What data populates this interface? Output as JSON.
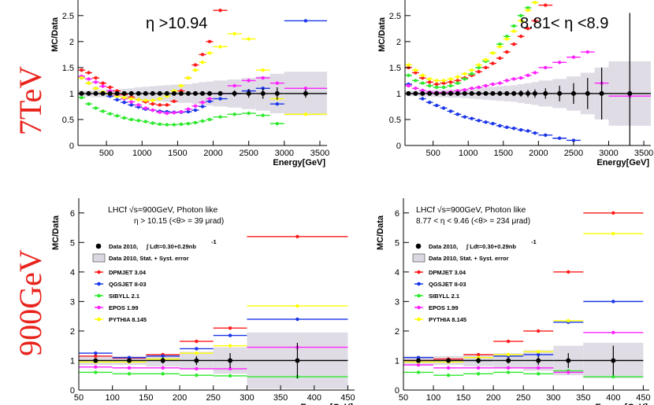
{
  "row_labels": [
    "7TeV",
    "900GeV"
  ],
  "colors": {
    "Data 2010": "#000000",
    "DPMJET 3.04": "#ff1a1a",
    "QGSJET II-03": "#1a35e8",
    "SIBYLL 2.1": "#2fe82f",
    "EPOS 1.99": "#ff22ff",
    "PYTHIA 8.145": "#ffff00",
    "band": "#dcd8e2"
  },
  "chart_data": [
    {
      "id": "p7a",
      "type": "scatter",
      "title": "η >10.94",
      "xlabel": "Energy[GeV]",
      "ylabel": "MC/Data",
      "xlim": [
        100,
        3600
      ],
      "ylim": [
        0,
        2.8
      ],
      "xticks": [
        500,
        1000,
        1500,
        2000,
        2500,
        3000,
        3500
      ],
      "yticks": [
        0,
        0.5,
        1,
        1.5,
        2,
        2.5
      ],
      "ytick_labels": [
        "0",
        "0.5",
        "1",
        "1.5",
        "2",
        "2.5"
      ],
      "bins": [
        [
          100,
          200
        ],
        [
          200,
          300
        ],
        [
          300,
          400
        ],
        [
          400,
          500
        ],
        [
          500,
          600
        ],
        [
          600,
          700
        ],
        [
          700,
          800
        ],
        [
          800,
          900
        ],
        [
          900,
          1000
        ],
        [
          1000,
          1100
        ],
        [
          1100,
          1200
        ],
        [
          1200,
          1300
        ],
        [
          1300,
          1400
        ],
        [
          1400,
          1500
        ],
        [
          1500,
          1600
        ],
        [
          1600,
          1700
        ],
        [
          1700,
          1800
        ],
        [
          1800,
          1900
        ],
        [
          1900,
          2000
        ],
        [
          2000,
          2200
        ],
        [
          2200,
          2400
        ],
        [
          2400,
          2600
        ],
        [
          2600,
          2800
        ],
        [
          2800,
          3000
        ],
        [
          3000,
          3600
        ]
      ],
      "band": [
        0.06,
        0.06,
        0.07,
        0.07,
        0.08,
        0.08,
        0.09,
        0.1,
        0.12,
        0.13,
        0.14,
        0.15,
        0.16,
        0.17,
        0.18,
        0.18,
        0.2,
        0.22,
        0.23,
        0.25,
        0.27,
        0.3,
        0.33,
        0.38,
        0.42
      ],
      "series": [
        {
          "name": "Data 2010",
          "values": [
            1,
            1,
            1,
            1,
            1,
            1,
            1,
            1,
            1,
            1,
            1,
            1,
            1,
            1,
            1,
            1,
            1,
            1,
            1,
            1,
            1,
            1,
            1,
            1,
            1
          ],
          "errors": [
            0.01,
            0.01,
            0.01,
            0.01,
            0.01,
            0.01,
            0.01,
            0.01,
            0.01,
            0.01,
            0.01,
            0.02,
            0.02,
            0.02,
            0.02,
            0.02,
            0.03,
            0.03,
            0.03,
            0.04,
            0.06,
            0.08,
            0.1,
            0.12,
            0.08
          ]
        },
        {
          "name": "DPMJET 3.04",
          "values": [
            1.45,
            1.4,
            1.3,
            1.2,
            1.12,
            1.05,
            0.98,
            0.93,
            0.88,
            0.84,
            0.8,
            0.78,
            0.78,
            0.85,
            1.05,
            1.3,
            1.55,
            1.75,
            2.0,
            2.6
          ]
        },
        {
          "name": "QGSJET II-03",
          "values": [
            1.3,
            1.2,
            1.1,
            1.0,
            0.95,
            0.88,
            0.83,
            0.78,
            0.74,
            0.7,
            0.68,
            0.66,
            0.65,
            0.64,
            0.64,
            0.65,
            0.68,
            0.75,
            0.85,
            0.9,
            1.0,
            1.05,
            1.1,
            0.8,
            2.4
          ]
        },
        {
          "name": "SIBYLL 2.1",
          "values": [
            0.92,
            0.8,
            0.72,
            0.66,
            0.61,
            0.57,
            0.53,
            0.5,
            0.48,
            0.46,
            0.43,
            0.41,
            0.4,
            0.4,
            0.41,
            0.42,
            0.44,
            0.47,
            0.5,
            0.55,
            0.6,
            0.62,
            0.58,
            0.42
          ]
        },
        {
          "name": "EPOS 1.99",
          "values": [
            1.33,
            1.28,
            1.22,
            1.14,
            1.05,
            0.97,
            0.9,
            0.84,
            0.78,
            0.72,
            0.68,
            0.64,
            0.62,
            0.63,
            0.65,
            0.7,
            0.76,
            0.83,
            0.9,
            1.0,
            1.15,
            1.25,
            1.3,
            1.2,
            1.1
          ]
        },
        {
          "name": "PYTHIA 8.145",
          "values": [
            1.3,
            1.2,
            1.1,
            1.03,
            0.99,
            0.95,
            0.92,
            0.9,
            0.88,
            0.87,
            0.87,
            0.9,
            0.95,
            1.05,
            1.15,
            1.3,
            1.45,
            1.6,
            1.78,
            1.9,
            2.15,
            2.05,
            1.45,
            0.9,
            0.6
          ]
        }
      ]
    },
    {
      "id": "p7b",
      "type": "scatter",
      "title": "8.81< η <8.9",
      "xlabel": "Energy[GeV]",
      "ylabel": "MC/Data",
      "xlim": [
        100,
        3600
      ],
      "ylim": [
        0,
        2.8
      ],
      "xticks": [
        500,
        1000,
        1500,
        2000,
        2500,
        3000,
        3500
      ],
      "yticks": [
        0,
        0.5,
        1,
        1.5,
        2,
        2.5
      ],
      "ytick_labels": [
        "0",
        "0.5",
        "1",
        "1.5",
        "2",
        "2.5"
      ],
      "bins": [
        [
          100,
          200
        ],
        [
          200,
          300
        ],
        [
          300,
          400
        ],
        [
          400,
          500
        ],
        [
          500,
          600
        ],
        [
          600,
          700
        ],
        [
          700,
          800
        ],
        [
          800,
          900
        ],
        [
          900,
          1000
        ],
        [
          1000,
          1100
        ],
        [
          1100,
          1200
        ],
        [
          1200,
          1300
        ],
        [
          1300,
          1400
        ],
        [
          1400,
          1500
        ],
        [
          1500,
          1600
        ],
        [
          1600,
          1700
        ],
        [
          1700,
          1800
        ],
        [
          1800,
          1900
        ],
        [
          1900,
          2000
        ],
        [
          2000,
          2200
        ],
        [
          2200,
          2400
        ],
        [
          2400,
          2600
        ],
        [
          2600,
          2800
        ],
        [
          2800,
          3000
        ],
        [
          3000,
          3600
        ]
      ],
      "band": [
        0.05,
        0.05,
        0.06,
        0.06,
        0.07,
        0.07,
        0.08,
        0.08,
        0.09,
        0.1,
        0.11,
        0.12,
        0.13,
        0.14,
        0.15,
        0.16,
        0.18,
        0.2,
        0.22,
        0.25,
        0.28,
        0.33,
        0.4,
        0.5,
        0.62
      ],
      "series": [
        {
          "name": "Data 2010",
          "values": [
            1,
            1,
            1,
            1,
            1,
            1,
            1,
            1,
            1,
            1,
            1,
            1,
            1,
            1,
            1,
            1,
            1,
            1,
            1,
            1,
            1,
            1,
            1,
            1,
            1
          ],
          "errors": [
            0.01,
            0.01,
            0.01,
            0.01,
            0.01,
            0.01,
            0.01,
            0.02,
            0.02,
            0.02,
            0.02,
            0.03,
            0.03,
            0.03,
            0.04,
            0.05,
            0.06,
            0.07,
            0.08,
            0.1,
            0.15,
            0.2,
            0.3,
            0.5,
            1.55
          ]
        },
        {
          "name": "DPMJET 3.04",
          "values": [
            1.5,
            1.4,
            1.3,
            1.22,
            1.18,
            1.2,
            1.22,
            1.25,
            1.3,
            1.35,
            1.42,
            1.5,
            1.58,
            1.68,
            1.8,
            1.95,
            2.1,
            2.25,
            2.4,
            2.7
          ]
        },
        {
          "name": "QGSJET II-03",
          "values": [
            1.18,
            1.0,
            0.9,
            0.83,
            0.77,
            0.72,
            0.66,
            0.6,
            0.55,
            0.52,
            0.48,
            0.45,
            0.42,
            0.38,
            0.35,
            0.33,
            0.3,
            0.28,
            0.24,
            0.2,
            0.14,
            0.1
          ]
        },
        {
          "name": "SIBYLL 2.1",
          "values": [
            1.35,
            1.25,
            1.2,
            1.15,
            1.12,
            1.12,
            1.15,
            1.2,
            1.28,
            1.38,
            1.5,
            1.62,
            1.78,
            1.95,
            2.1,
            2.3,
            2.5,
            2.65,
            2.75
          ]
        },
        {
          "name": "EPOS 1.99",
          "values": [
            1.15,
            1.1,
            1.06,
            1.03,
            1.02,
            1.02,
            1.03,
            1.05,
            1.07,
            1.1,
            1.12,
            1.15,
            1.18,
            1.2,
            1.25,
            1.28,
            1.3,
            1.35,
            1.4,
            1.5,
            1.6,
            1.7,
            1.8,
            1.2,
            0.95
          ]
        },
        {
          "name": "PYTHIA 8.145",
          "values": [
            1.55,
            1.45,
            1.35,
            1.28,
            1.25,
            1.25,
            1.28,
            1.32,
            1.38,
            1.45,
            1.55,
            1.65,
            1.78,
            1.9,
            2.05,
            2.2,
            2.4,
            2.6,
            2.75,
            2.85
          ]
        }
      ]
    },
    {
      "id": "p9a",
      "type": "scatter",
      "title": "LHCf √s=900GeV, Photon like",
      "subtitle": "η > 10.15 (<θ> = 39 μrad)",
      "xlabel": "Energy[GeV]",
      "ylabel": "MC/Data",
      "xlim": [
        50,
        460
      ],
      "ylim": [
        0,
        6.5
      ],
      "xticks": [
        50,
        100,
        150,
        200,
        250,
        300,
        350,
        400,
        450
      ],
      "yticks": [
        0,
        1,
        2,
        3,
        4,
        5,
        6
      ],
      "ytick_labels": [
        "0",
        "1",
        "2",
        "3",
        "4",
        "5",
        "6"
      ],
      "bins": [
        [
          50,
          100
        ],
        [
          100,
          150
        ],
        [
          150,
          200
        ],
        [
          200,
          250
        ],
        [
          250,
          300
        ],
        [
          300,
          450
        ]
      ],
      "band": [
        0.15,
        0.15,
        0.2,
        0.3,
        0.45,
        0.95
      ],
      "legend": {
        "data_label": "Data 2010,",
        "lumi_label": "∫ Ldt=0.30+0.29nb",
        "lumi_sup": "-1",
        "band_label": "Data 2010, Stat. + Syst. error"
      },
      "series": [
        {
          "name": "Data 2010",
          "values": [
            1,
            1,
            1,
            1,
            1,
            1
          ],
          "errors": [
            0.05,
            0.05,
            0.1,
            0.15,
            0.25,
            0.6
          ]
        },
        {
          "name": "DPMJET 3.04",
          "values": [
            1.15,
            1.08,
            1.2,
            1.65,
            2.1,
            5.2
          ]
        },
        {
          "name": "QGSJET II-03",
          "values": [
            1.25,
            1.1,
            1.15,
            1.4,
            1.85,
            2.4
          ]
        },
        {
          "name": "SIBYLL 2.1",
          "values": [
            0.6,
            0.55,
            0.55,
            0.5,
            0.48,
            0.45
          ]
        },
        {
          "name": "EPOS 1.99",
          "values": [
            0.78,
            0.75,
            0.75,
            0.72,
            0.72,
            1.45
          ]
        },
        {
          "name": "PYTHIA 8.145",
          "values": [
            0.95,
            0.95,
            1.05,
            1.25,
            1.5,
            2.85
          ]
        }
      ]
    },
    {
      "id": "p9b",
      "type": "scatter",
      "title": "LHCf √s=900GeV, Photon like",
      "subtitle": "8.77 < η < 9.46 (<θ> = 234 μrad)",
      "xlabel": "Energy[GeV]",
      "ylabel": "MC/Data",
      "xlim": [
        50,
        460
      ],
      "ylim": [
        0,
        6.5
      ],
      "xticks": [
        50,
        100,
        150,
        200,
        250,
        300,
        350,
        400,
        450
      ],
      "yticks": [
        0,
        1,
        2,
        3,
        4,
        5,
        6
      ],
      "ytick_labels": [
        "0",
        "1",
        "2",
        "3",
        "4",
        "5",
        "6"
      ],
      "bins": [
        [
          50,
          100
        ],
        [
          100,
          150
        ],
        [
          150,
          200
        ],
        [
          200,
          250
        ],
        [
          250,
          300
        ],
        [
          300,
          350
        ],
        [
          350,
          450
        ]
      ],
      "band": [
        0.15,
        0.15,
        0.2,
        0.25,
        0.35,
        0.5,
        0.6
      ],
      "legend": {
        "data_label": "Data 2010,",
        "lumi_label": "∫ Ldt=0.30+0.29nb",
        "lumi_sup": "-1",
        "band_label": "Data 2010, Stat. + Syst. error"
      },
      "series": [
        {
          "name": "Data 2010",
          "values": [
            1,
            1,
            1,
            1,
            1,
            1,
            1
          ],
          "errors": [
            0.05,
            0.05,
            0.1,
            0.1,
            0.15,
            0.25,
            0.5
          ]
        },
        {
          "name": "DPMJET 3.04",
          "values": [
            1.0,
            1.05,
            1.2,
            1.65,
            2.0,
            4.0,
            6.0
          ]
        },
        {
          "name": "QGSJET II-03",
          "values": [
            1.1,
            1.0,
            1.0,
            1.15,
            1.2,
            2.3,
            3.0
          ]
        },
        {
          "name": "SIBYLL 2.1",
          "values": [
            0.6,
            0.5,
            0.55,
            0.6,
            0.55,
            0.65,
            0.45
          ]
        },
        {
          "name": "EPOS 1.99",
          "values": [
            0.85,
            0.75,
            0.75,
            0.75,
            0.75,
            0.6,
            1.95
          ]
        },
        {
          "name": "PYTHIA 8.145",
          "values": [
            0.95,
            0.95,
            1.1,
            1.2,
            1.3,
            2.35,
            5.3
          ]
        }
      ]
    }
  ]
}
